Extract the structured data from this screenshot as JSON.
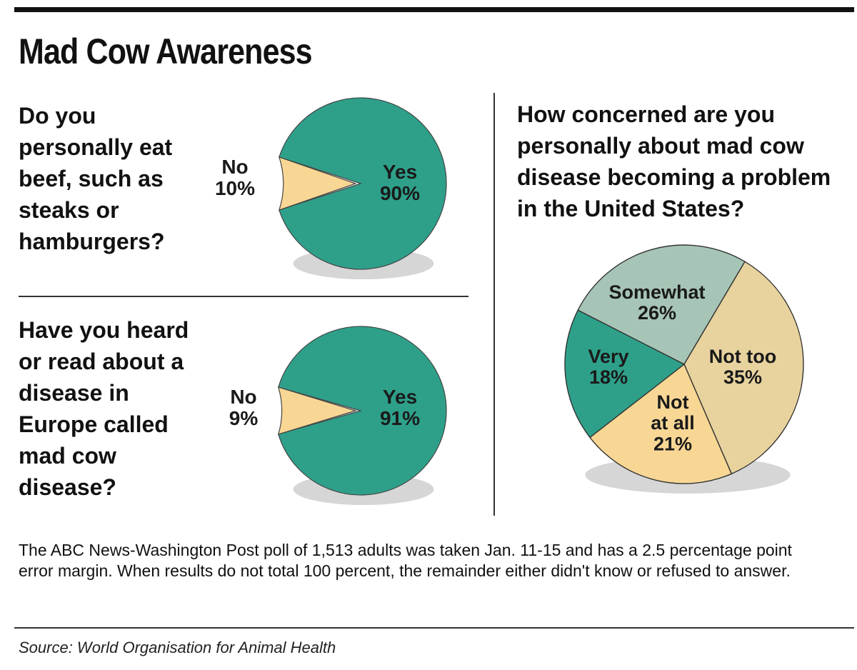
{
  "title": "Mad Cow Awareness",
  "colors": {
    "teal": "#2ea08a",
    "tan": "#f8d795",
    "sage": "#a7c5b6",
    "beige": "#e8d39f",
    "shadow": "#c8c8c8"
  },
  "note": "The ABC News-Washington Post poll of 1,513 adults was taken Jan. 11-15 and has a 2.5 percentage point error margin. When results do not total 100 percent, the remainder either didn't know or refused to answer.",
  "source": "Source: World Organisation for Animal Health",
  "chart_data": [
    {
      "type": "pie",
      "title": "Do you personally eat beef, such as steaks or hamburgers?",
      "slices": [
        {
          "label": "Yes",
          "value": 90,
          "value_label": "90%",
          "color": "#2ea08a"
        },
        {
          "label": "No",
          "value": 10,
          "value_label": "10%",
          "color": "#f8d795"
        }
      ]
    },
    {
      "type": "pie",
      "title": "Have you heard or read about a disease in Europe called mad cow disease?",
      "slices": [
        {
          "label": "Yes",
          "value": 91,
          "value_label": "91%",
          "color": "#2ea08a"
        },
        {
          "label": "No",
          "value": 9,
          "value_label": "9%",
          "color": "#f8d795"
        }
      ]
    },
    {
      "type": "pie",
      "title": "How concerned are you personally about mad cow disease becoming a problem in the United States?",
      "slices": [
        {
          "label": "Somewhat",
          "value": 26,
          "value_label": "26%",
          "color": "#a7c5b6"
        },
        {
          "label": "Not too",
          "value": 35,
          "value_label": "35%",
          "color": "#e8d39f"
        },
        {
          "label": "Not at all",
          "value": 21,
          "value_label": "21%",
          "color": "#f8d795"
        },
        {
          "label": "Very",
          "value": 18,
          "value_label": "18%",
          "color": "#2ea08a"
        }
      ]
    }
  ]
}
